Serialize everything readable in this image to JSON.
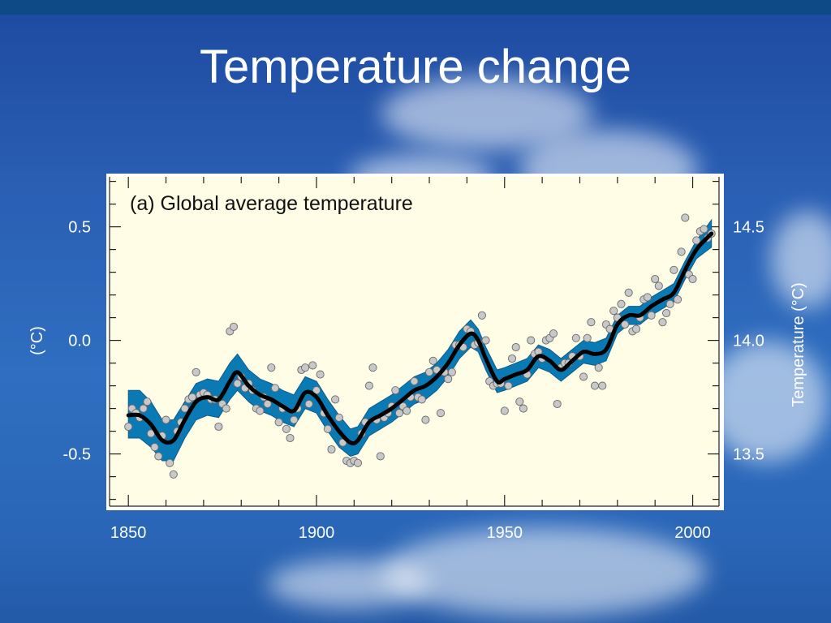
{
  "slide": {
    "title": "Temperature change"
  },
  "colors": {
    "background": "#2a5fb4",
    "plot_background": "#fffde6",
    "band": "#0a7ab5",
    "line": "#000000",
    "point": "#c8c8c8"
  },
  "chart_data": {
    "type": "line",
    "title": "(a) Global average temperature",
    "xlabel": "",
    "ylabel": "(°C)",
    "y2label": "Temperature (°C)",
    "xlim": [
      1845,
      2007
    ],
    "ylim": [
      -0.73,
      0.72
    ],
    "y2lim": [
      13.27,
      14.72
    ],
    "x_ticks": [
      1850,
      1900,
      1950,
      2000
    ],
    "y_ticks": [
      0.5,
      0.0,
      -0.5
    ],
    "y_tick_labels": [
      "0.5",
      "0.0",
      "-0.5"
    ],
    "y2_ticks": [
      14.5,
      14.0,
      13.5
    ],
    "y2_tick_labels": [
      "14.5",
      "14.0",
      "13.5"
    ],
    "grid": false,
    "series": [
      {
        "kind": "smoothed-line",
        "x": [
          1850,
          1853,
          1856,
          1859,
          1862,
          1865,
          1868,
          1871,
          1874,
          1877,
          1879,
          1882,
          1885,
          1888,
          1891,
          1894,
          1897,
          1900,
          1903,
          1906,
          1909,
          1911,
          1914,
          1917,
          1920,
          1923,
          1926,
          1929,
          1932,
          1935,
          1938,
          1941,
          1943,
          1945,
          1948,
          1950,
          1953,
          1956,
          1959,
          1962,
          1965,
          1968,
          1971,
          1974,
          1977,
          1980,
          1983,
          1986,
          1989,
          1992,
          1995,
          1998,
          2001,
          2005
        ],
        "values": [
          -0.33,
          -0.33,
          -0.37,
          -0.44,
          -0.44,
          -0.35,
          -0.27,
          -0.25,
          -0.26,
          -0.18,
          -0.14,
          -0.2,
          -0.24,
          -0.26,
          -0.29,
          -0.31,
          -0.23,
          -0.25,
          -0.33,
          -0.4,
          -0.45,
          -0.44,
          -0.36,
          -0.33,
          -0.3,
          -0.26,
          -0.22,
          -0.2,
          -0.16,
          -0.1,
          -0.02,
          0.03,
          0.0,
          -0.08,
          -0.18,
          -0.17,
          -0.15,
          -0.13,
          -0.07,
          -0.09,
          -0.13,
          -0.09,
          -0.05,
          -0.06,
          -0.04,
          0.07,
          0.11,
          0.11,
          0.15,
          0.18,
          0.21,
          0.31,
          0.4,
          0.47
        ]
      },
      {
        "kind": "uncertainty-band",
        "x": [
          1850,
          1853,
          1856,
          1859,
          1862,
          1865,
          1868,
          1871,
          1874,
          1877,
          1879,
          1882,
          1885,
          1888,
          1891,
          1894,
          1897,
          1900,
          1903,
          1906,
          1909,
          1911,
          1914,
          1917,
          1920,
          1923,
          1926,
          1929,
          1932,
          1935,
          1938,
          1941,
          1943,
          1945,
          1948,
          1950,
          1953,
          1956,
          1959,
          1962,
          1965,
          1968,
          1971,
          1974,
          1977,
          1980,
          1983,
          1986,
          1989,
          1992,
          1995,
          1998,
          2001,
          2005
        ],
        "upper": [
          -0.22,
          -0.22,
          -0.27,
          -0.35,
          -0.35,
          -0.27,
          -0.19,
          -0.17,
          -0.18,
          -0.1,
          -0.06,
          -0.13,
          -0.17,
          -0.19,
          -0.22,
          -0.24,
          -0.16,
          -0.18,
          -0.26,
          -0.33,
          -0.39,
          -0.38,
          -0.3,
          -0.27,
          -0.24,
          -0.2,
          -0.16,
          -0.14,
          -0.1,
          -0.04,
          0.04,
          0.09,
          0.05,
          -0.03,
          -0.13,
          -0.12,
          -0.1,
          -0.08,
          -0.02,
          -0.04,
          -0.08,
          -0.04,
          0.0,
          -0.01,
          0.01,
          0.11,
          0.15,
          0.15,
          0.19,
          0.22,
          0.25,
          0.35,
          0.44,
          0.53
        ],
        "lower": [
          -0.43,
          -0.43,
          -0.47,
          -0.53,
          -0.53,
          -0.43,
          -0.35,
          -0.33,
          -0.34,
          -0.26,
          -0.22,
          -0.27,
          -0.31,
          -0.33,
          -0.36,
          -0.38,
          -0.3,
          -0.32,
          -0.4,
          -0.47,
          -0.51,
          -0.5,
          -0.42,
          -0.39,
          -0.36,
          -0.32,
          -0.28,
          -0.26,
          -0.22,
          -0.16,
          -0.08,
          -0.03,
          -0.05,
          -0.13,
          -0.23,
          -0.22,
          -0.2,
          -0.18,
          -0.12,
          -0.14,
          -0.18,
          -0.14,
          -0.1,
          -0.11,
          -0.09,
          0.03,
          0.07,
          0.07,
          0.11,
          0.14,
          0.17,
          0.27,
          0.36,
          0.41
        ]
      },
      {
        "kind": "annual-points",
        "x": [
          1850,
          1851,
          1852,
          1853,
          1854,
          1855,
          1856,
          1857,
          1858,
          1859,
          1860,
          1861,
          1862,
          1863,
          1864,
          1865,
          1866,
          1867,
          1868,
          1869,
          1870,
          1871,
          1872,
          1873,
          1874,
          1875,
          1876,
          1877,
          1878,
          1879,
          1880,
          1881,
          1882,
          1883,
          1884,
          1885,
          1886,
          1887,
          1888,
          1889,
          1890,
          1891,
          1892,
          1893,
          1894,
          1895,
          1896,
          1897,
          1898,
          1899,
          1900,
          1901,
          1902,
          1903,
          1904,
          1905,
          1906,
          1907,
          1908,
          1909,
          1910,
          1911,
          1912,
          1913,
          1914,
          1915,
          1916,
          1917,
          1918,
          1919,
          1920,
          1921,
          1922,
          1923,
          1924,
          1925,
          1926,
          1927,
          1928,
          1929,
          1930,
          1931,
          1932,
          1933,
          1934,
          1935,
          1936,
          1937,
          1938,
          1939,
          1940,
          1941,
          1942,
          1943,
          1944,
          1945,
          1946,
          1947,
          1948,
          1949,
          1950,
          1951,
          1952,
          1953,
          1954,
          1955,
          1956,
          1957,
          1958,
          1959,
          1960,
          1961,
          1962,
          1963,
          1964,
          1965,
          1966,
          1967,
          1968,
          1969,
          1970,
          1971,
          1972,
          1973,
          1974,
          1975,
          1976,
          1977,
          1978,
          1979,
          1980,
          1981,
          1982,
          1983,
          1984,
          1985,
          1986,
          1987,
          1988,
          1989,
          1990,
          1991,
          1992,
          1993,
          1994,
          1995,
          1996,
          1997,
          1998,
          1999,
          2000,
          2001,
          2002,
          2003,
          2004,
          2005
        ],
        "values": [
          -0.38,
          -0.3,
          -0.32,
          -0.34,
          -0.3,
          -0.27,
          -0.41,
          -0.47,
          -0.51,
          -0.42,
          -0.35,
          -0.54,
          -0.59,
          -0.4,
          -0.36,
          -0.3,
          -0.26,
          -0.25,
          -0.14,
          -0.24,
          -0.23,
          -0.24,
          -0.26,
          -0.26,
          -0.38,
          -0.28,
          -0.3,
          0.04,
          0.06,
          -0.19,
          -0.16,
          -0.21,
          -0.19,
          -0.22,
          -0.3,
          -0.31,
          -0.25,
          -0.28,
          -0.12,
          -0.21,
          -0.36,
          -0.3,
          -0.39,
          -0.43,
          -0.35,
          -0.3,
          -0.13,
          -0.12,
          -0.28,
          -0.11,
          -0.22,
          -0.15,
          -0.32,
          -0.39,
          -0.48,
          -0.26,
          -0.34,
          -0.45,
          -0.53,
          -0.54,
          -0.53,
          -0.54,
          -0.41,
          -0.36,
          -0.2,
          -0.12,
          -0.35,
          -0.51,
          -0.34,
          -0.32,
          -0.29,
          -0.22,
          -0.32,
          -0.29,
          -0.31,
          -0.25,
          -0.18,
          -0.25,
          -0.26,
          -0.35,
          -0.14,
          -0.09,
          -0.13,
          -0.32,
          -0.14,
          -0.17,
          -0.14,
          -0.02,
          -0.02,
          -0.03,
          0.05,
          0.04,
          -0.02,
          -0.01,
          0.11,
          0.0,
          -0.18,
          -0.2,
          -0.19,
          -0.19,
          -0.31,
          -0.2,
          -0.08,
          -0.03,
          -0.27,
          -0.3,
          -0.15,
          0.0,
          -0.06,
          -0.05,
          -0.08,
          0.0,
          0.01,
          0.03,
          -0.28,
          -0.12,
          -0.1,
          -0.1,
          -0.07,
          0.01,
          -0.07,
          -0.16,
          0.01,
          0.08,
          -0.2,
          -0.12,
          -0.2,
          0.07,
          0.05,
          0.13,
          0.1,
          0.16,
          0.07,
          0.21,
          0.04,
          0.05,
          0.1,
          0.18,
          0.19,
          0.11,
          0.27,
          0.24,
          0.08,
          0.12,
          0.16,
          0.31,
          0.18,
          0.39,
          0.54,
          0.29,
          0.27,
          0.44,
          0.48,
          0.49,
          0.45,
          0.47
        ]
      }
    ]
  }
}
